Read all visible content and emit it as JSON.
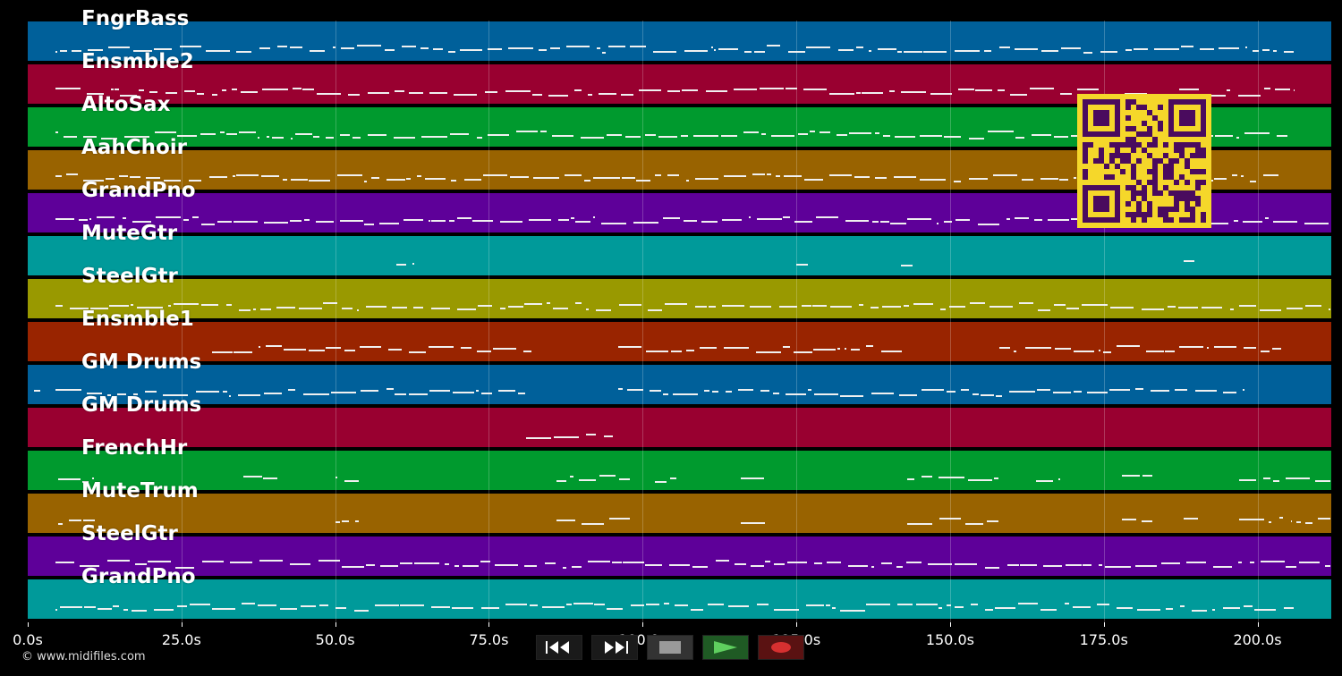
{
  "tracks": [
    {
      "name": "FngrBass",
      "color": "#00609a"
    },
    {
      "name": "Ensmble2",
      "color": "#990030"
    },
    {
      "name": "AltoSax",
      "color": "#009a2e"
    },
    {
      "name": "AahChoir",
      "color": "#996300"
    },
    {
      "name": "GrandPno",
      "color": "#5e0099"
    },
    {
      "name": "MuteGtr",
      "color": "#009a9a"
    },
    {
      "name": "SteelGtr",
      "color": "#999900"
    },
    {
      "name": "Ensmble1",
      "color": "#992400"
    },
    {
      "name": "GM Drums",
      "color": "#00609a"
    },
    {
      "name": "GM Drums",
      "color": "#990030"
    },
    {
      "name": "FrenchHr",
      "color": "#009a2e"
    },
    {
      "name": "MuteTrum",
      "color": "#996300"
    },
    {
      "name": "SteelGtr",
      "color": "#5e0099"
    },
    {
      "name": "GrandPno",
      "color": "#009a9a"
    }
  ],
  "axis": {
    "ticks": [
      "0.0s",
      "25.0s",
      "50.0s",
      "75.0s",
      "100.0s",
      "125.0s",
      "150.0s",
      "175.0s",
      "200.0s"
    ],
    "tick_values_s": [
      0,
      25,
      50,
      75,
      100,
      125,
      150,
      175,
      200
    ],
    "max_s": 212
  },
  "transport": {
    "rewind": "rewind-icon",
    "fast_forward": "fast-forward-icon",
    "stop": "stop-icon",
    "play": "play-icon",
    "record": "record-icon"
  },
  "copyright": "© www.midifiles.com",
  "qr_code": "qr-code"
}
